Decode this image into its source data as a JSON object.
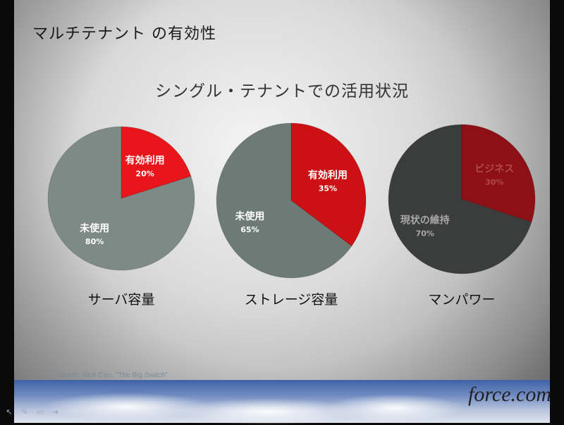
{
  "slide": {
    "title": "マルチテナント の有効性",
    "source": "Source: Nick Carr, \"The Big Switch\"",
    "logo": "force.com"
  },
  "colors": {
    "red": "#e8161b",
    "dark_red": "#8c1016",
    "gray_green": "#7d8a86",
    "dark_gray": "#3b3d3d"
  },
  "toolbar": {
    "icons": [
      "arrow-icon",
      "pen-icon",
      "screen-icon",
      "next-icon"
    ]
  },
  "chart_data": {
    "type": "pie",
    "title": "シングル・テナントでの活用状況",
    "charts": [
      {
        "label": "サーバ容量",
        "slices": [
          {
            "name": "有効利用",
            "value": 20,
            "value_label": "20%",
            "color": "#e8161b"
          },
          {
            "name": "未使用",
            "value": 80,
            "value_label": "80%",
            "color": "#7d8a86"
          }
        ]
      },
      {
        "label": "ストレージ容量",
        "slices": [
          {
            "name": "有効利用",
            "value": 35,
            "value_label": "35%",
            "color": "#cc1014"
          },
          {
            "name": "未使用",
            "value": 65,
            "value_label": "65%",
            "color": "#6d7a76"
          }
        ]
      },
      {
        "label": "マンパワー",
        "slices": [
          {
            "name": "ビジネス",
            "value": 30,
            "value_label": "30%",
            "color": "#8c1016"
          },
          {
            "name": "現状の維持",
            "value": 70,
            "value_label": "70%",
            "color": "#3b3d3d"
          }
        ]
      }
    ]
  }
}
